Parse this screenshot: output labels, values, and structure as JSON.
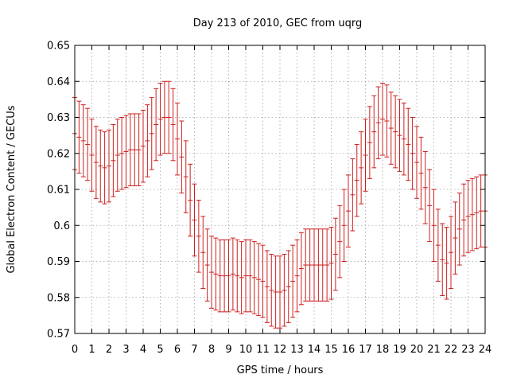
{
  "chart_data": {
    "type": "scatter",
    "style": "errorbars",
    "title": "Day 213 of 2010, GEC from uqrg",
    "xlabel": "GPS time / hours",
    "ylabel": "Global Electron Content / GECUs",
    "xlim": [
      0,
      24
    ],
    "ylim": [
      0.57,
      0.65
    ],
    "xticks": [
      0,
      1,
      2,
      3,
      4,
      5,
      6,
      7,
      8,
      9,
      10,
      11,
      12,
      13,
      14,
      15,
      16,
      17,
      18,
      19,
      20,
      21,
      22,
      23,
      24
    ],
    "yticks": [
      0.57,
      0.58,
      0.59,
      0.6,
      0.61,
      0.62,
      0.63,
      0.64,
      0.65
    ],
    "grid": true,
    "legend": "none",
    "error": 0.01,
    "color": "#cc1f1f",
    "series": [
      {
        "x": [
          0,
          0.25,
          0.5,
          0.75,
          1,
          1.25,
          1.5,
          1.75,
          2,
          2.25,
          2.5,
          2.75,
          3,
          3.25,
          3.5,
          3.75,
          4,
          4.25,
          4.5,
          4.75,
          5,
          5.25,
          5.5,
          5.75,
          6,
          6.25,
          6.5,
          6.75,
          7,
          7.25,
          7.5,
          7.75,
          8,
          8.25,
          8.5,
          8.75,
          9,
          9.25,
          9.5,
          9.75,
          10,
          10.25,
          10.5,
          10.75,
          11,
          11.25,
          11.5,
          11.75,
          12,
          12.25,
          12.5,
          12.75,
          13,
          13.25,
          13.5,
          13.75,
          14,
          14.25,
          14.5,
          14.75,
          15,
          15.25,
          15.5,
          15.75,
          16,
          16.25,
          16.5,
          16.75,
          17,
          17.25,
          17.5,
          17.75,
          18,
          18.25,
          18.5,
          18.75,
          19,
          19.25,
          19.5,
          19.75,
          20,
          20.25,
          20.5,
          20.75,
          21,
          21.25,
          21.5,
          21.75,
          22,
          22.25,
          22.5,
          22.75,
          23,
          23.25,
          23.5,
          23.75,
          24
        ],
        "y": [
          0.6255,
          0.6245,
          0.6235,
          0.6225,
          0.6195,
          0.6175,
          0.6165,
          0.616,
          0.6165,
          0.618,
          0.6195,
          0.62,
          0.6205,
          0.621,
          0.621,
          0.621,
          0.622,
          0.6235,
          0.6255,
          0.628,
          0.6295,
          0.63,
          0.63,
          0.628,
          0.624,
          0.619,
          0.6135,
          0.607,
          0.6015,
          0.597,
          0.5925,
          0.589,
          0.587,
          0.5865,
          0.586,
          0.586,
          0.586,
          0.5865,
          0.586,
          0.5855,
          0.586,
          0.586,
          0.5855,
          0.585,
          0.5845,
          0.583,
          0.582,
          0.5815,
          0.5815,
          0.582,
          0.583,
          0.5845,
          0.586,
          0.588,
          0.589,
          0.589,
          0.589,
          0.589,
          0.589,
          0.589,
          0.5895,
          0.592,
          0.5955,
          0.6,
          0.604,
          0.6085,
          0.6125,
          0.616,
          0.6195,
          0.623,
          0.626,
          0.6285,
          0.6295,
          0.629,
          0.627,
          0.626,
          0.625,
          0.624,
          0.6225,
          0.62,
          0.6175,
          0.6145,
          0.6105,
          0.6055,
          0.6,
          0.5945,
          0.5905,
          0.5895,
          0.5925,
          0.5965,
          0.599,
          0.6015,
          0.6025,
          0.603,
          0.6035,
          0.604,
          0.604
        ]
      }
    ]
  }
}
